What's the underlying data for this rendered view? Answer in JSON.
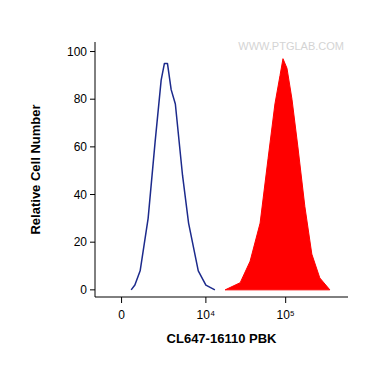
{
  "chart_data": {
    "type": "line",
    "x_label": "CL647-16110 PBK",
    "y_label": "Relative Cell Number",
    "watermark": "WWW.PTGLAB.COM",
    "log": "x",
    "grid": false,
    "xlim": [
      -1500,
      600000
    ],
    "xticks": [
      0,
      {
        "value": 10000,
        "label": "10⁴"
      },
      {
        "value": 100000,
        "label": "10⁵"
      }
    ],
    "ylim": [
      -3,
      104
    ],
    "yticks": [
      0,
      20,
      40,
      60,
      80,
      100
    ],
    "series": [
      {
        "type": "line",
        "color": "#1c2a8c",
        "x": [
          500,
          700,
          1000,
          1500,
          2000,
          2500,
          2800,
          3100,
          3500,
          4000,
          5000,
          6000,
          8000,
          10000,
          13000
        ],
        "values": [
          0,
          2,
          8,
          30,
          62,
          88,
          95,
          95,
          84,
          78,
          48,
          28,
          8,
          2,
          0
        ]
      },
      {
        "type": "area",
        "color": "#ff0000",
        "x": [
          17500,
          27000,
          35900,
          47900,
          60200,
          73400,
          85000,
          92500,
          103800,
          119800,
          142000,
          173500,
          212000,
          266700,
          356000
        ],
        "values": [
          0,
          3,
          12,
          28,
          55,
          78,
          90,
          97,
          93,
          80,
          60,
          35,
          15,
          5,
          0
        ]
      }
    ]
  }
}
